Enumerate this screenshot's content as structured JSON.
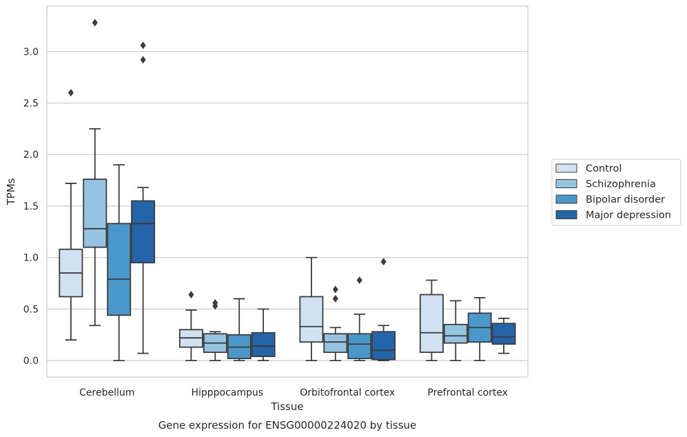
{
  "chart_data": {
    "type": "boxplot",
    "title": "Gene expression for ENSG00000224020 by tissue",
    "xlabel": "Tissue",
    "ylabel": "TPMs",
    "ylim": [
      -0.16,
      3.44
    ],
    "yticks": [
      "0.0",
      "0.5",
      "1.0",
      "1.5",
      "2.0",
      "2.5",
      "3.0"
    ],
    "grid": "horizontal",
    "legend_position": "right",
    "categories": [
      "Cerebellum",
      "Hipppocampus",
      "Orbitofrontal cortex",
      "Prefrontal cortex"
    ],
    "series": [
      {
        "name": "Control",
        "color": "#d0e1f2",
        "boxes": [
          {
            "whisker_low": 0.2,
            "q1": 0.62,
            "median": 0.85,
            "q3": 1.08,
            "whisker_high": 1.72,
            "outliers": [
              2.6
            ]
          },
          {
            "whisker_low": 0.0,
            "q1": 0.13,
            "median": 0.22,
            "q3": 0.3,
            "whisker_high": 0.49,
            "outliers": [
              0.64
            ]
          },
          {
            "whisker_low": 0.0,
            "q1": 0.18,
            "median": 0.33,
            "q3": 0.62,
            "whisker_high": 1.0,
            "outliers": []
          },
          {
            "whisker_low": 0.0,
            "q1": 0.08,
            "median": 0.27,
            "q3": 0.64,
            "whisker_high": 0.78,
            "outliers": []
          }
        ]
      },
      {
        "name": "Schizophrenia",
        "color": "#94c4df",
        "boxes": [
          {
            "whisker_low": 0.34,
            "q1": 1.1,
            "median": 1.28,
            "q3": 1.76,
            "whisker_high": 2.25,
            "outliers": [
              3.28
            ]
          },
          {
            "whisker_low": 0.0,
            "q1": 0.08,
            "median": 0.17,
            "q3": 0.26,
            "whisker_high": 0.28,
            "outliers": [
              0.53,
              0.56
            ]
          },
          {
            "whisker_low": 0.0,
            "q1": 0.08,
            "median": 0.18,
            "q3": 0.26,
            "whisker_high": 0.32,
            "outliers": [
              0.6,
              0.69
            ]
          },
          {
            "whisker_low": 0.0,
            "q1": 0.17,
            "median": 0.24,
            "q3": 0.35,
            "whisker_high": 0.58,
            "outliers": []
          }
        ]
      },
      {
        "name": "Bipolar disorder",
        "color": "#4a98c9",
        "boxes": [
          {
            "whisker_low": 0.0,
            "q1": 0.44,
            "median": 0.79,
            "q3": 1.33,
            "whisker_high": 1.9,
            "outliers": []
          },
          {
            "whisker_low": 0.0,
            "q1": 0.02,
            "median": 0.13,
            "q3": 0.25,
            "whisker_high": 0.6,
            "outliers": []
          },
          {
            "whisker_low": 0.0,
            "q1": 0.02,
            "median": 0.16,
            "q3": 0.26,
            "whisker_high": 0.45,
            "outliers": [
              0.78
            ]
          },
          {
            "whisker_low": 0.0,
            "q1": 0.18,
            "median": 0.32,
            "q3": 0.46,
            "whisker_high": 0.61,
            "outliers": []
          }
        ]
      },
      {
        "name": "Major depression",
        "color": "#2464a8",
        "boxes": [
          {
            "whisker_low": 0.07,
            "q1": 0.95,
            "median": 1.33,
            "q3": 1.55,
            "whisker_high": 1.68,
            "outliers": [
              2.92,
              3.06
            ]
          },
          {
            "whisker_low": 0.0,
            "q1": 0.04,
            "median": 0.14,
            "q3": 0.27,
            "whisker_high": 0.5,
            "outliers": []
          },
          {
            "whisker_low": 0.0,
            "q1": 0.01,
            "median": 0.1,
            "q3": 0.28,
            "whisker_high": 0.34,
            "outliers": [
              0.96
            ]
          },
          {
            "whisker_low": 0.07,
            "q1": 0.16,
            "median": 0.23,
            "q3": 0.36,
            "whisker_high": 0.41,
            "outliers": []
          }
        ]
      }
    ]
  },
  "colors": {
    "grid": "#cccccc",
    "frame": "#cccccc",
    "line": "#3b3b3b",
    "background": "#ffffff"
  }
}
